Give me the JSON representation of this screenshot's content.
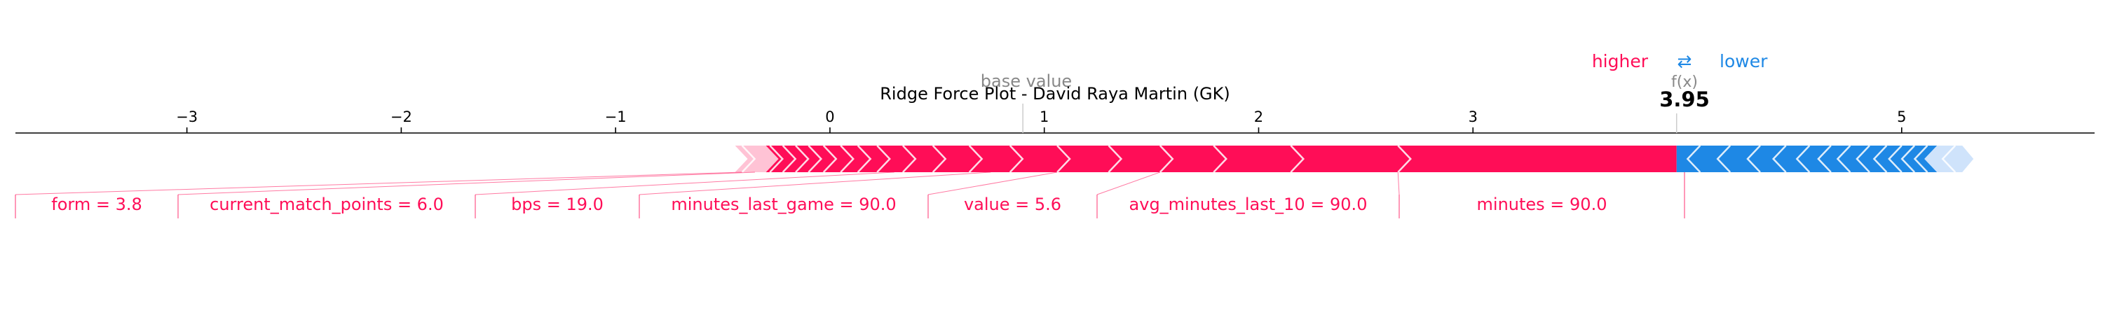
{
  "title": "Ridge Force Plot - David Raya Martin (GK)",
  "legend": {
    "higher": "higher",
    "arrow": "⇄",
    "lower": "lower"
  },
  "annotations": {
    "base_value_label": "base value",
    "fx_label": "f(x)",
    "fx_value": "3.95"
  },
  "colors": {
    "positive": "#ff0d57",
    "negative": "#1e88e5",
    "axis": "#000000",
    "muted": "#888888"
  },
  "chart_data": {
    "type": "force",
    "title": "Ridge Force Plot - David Raya Martin (GK)",
    "xlim": [
      -3.8,
      5.9
    ],
    "ticks": [
      {
        "value": -3,
        "label": "−3"
      },
      {
        "value": -2,
        "label": "−2"
      },
      {
        "value": -1,
        "label": "−1"
      },
      {
        "value": 0,
        "label": "0"
      },
      {
        "value": 1,
        "label": "1"
      },
      {
        "value": 2,
        "label": "2"
      },
      {
        "value": 3,
        "label": "3"
      },
      {
        "value": 5,
        "label": "5"
      }
    ],
    "base_value": 0.9,
    "output_value": 3.95,
    "positive_range": [
      -0.41,
      3.95
    ],
    "negative_range": [
      3.95,
      5.25
    ],
    "positive_boundaries": [
      -0.41,
      -0.28,
      -0.22,
      -0.16,
      -0.1,
      -0.03,
      0.05,
      0.13,
      0.22,
      0.34,
      0.48,
      0.65,
      0.84,
      1.06,
      1.3,
      1.54,
      1.79,
      2.15,
      2.65
    ],
    "negative_boundaries": [
      4.06,
      4.2,
      4.34,
      4.46,
      4.57,
      4.67,
      4.76,
      4.85,
      4.93,
      5.0,
      5.06,
      5.12,
      5.25
    ],
    "labeled_features": [
      {
        "label": "form = 3.8",
        "start": -0.41,
        "end": -0.35
      },
      {
        "label": "current_match_points = 6.0",
        "start": -0.35,
        "end": 0.3
      },
      {
        "label": "bps = 19.0",
        "start": 0.3,
        "end": 0.75
      },
      {
        "label": "minutes_last_game = 90.0",
        "start": 0.75,
        "end": 1.06
      },
      {
        "label": "value = 5.6",
        "start": 1.06,
        "end": 1.54
      },
      {
        "label": "avg_minutes_last_10 = 90.0",
        "start": 1.54,
        "end": 2.15
      },
      {
        "label": "minutes = 90.0",
        "start": 2.65,
        "end": 3.95
      }
    ]
  }
}
